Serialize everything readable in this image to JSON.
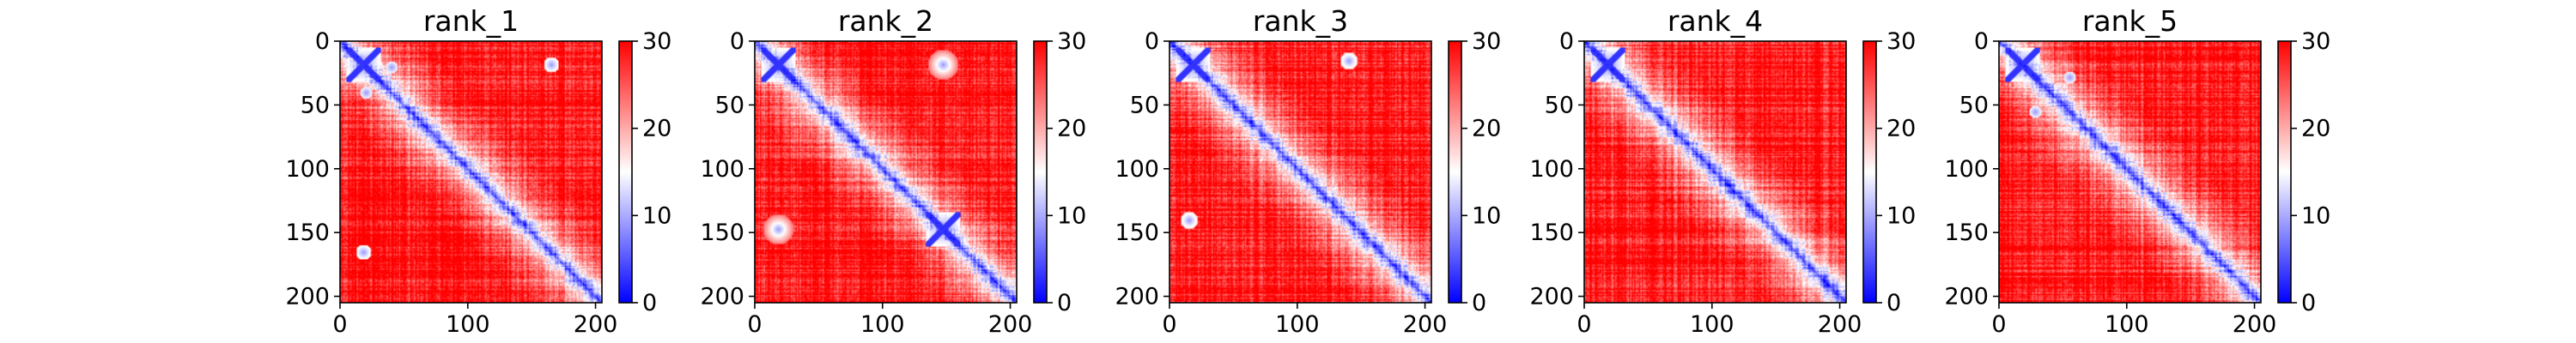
{
  "figure": {
    "colors": {
      "low": "#0000ff",
      "mid": "#ffffff",
      "high": "#ff0000"
    }
  },
  "chart_data": [
    {
      "type": "heatmap",
      "title": "rank_1",
      "xlabel": "",
      "ylabel": "",
      "matrix_size": 205,
      "xlim": [
        0,
        205
      ],
      "ylim": [
        205,
        0
      ],
      "x_ticks": [
        0,
        100,
        200
      ],
      "y_ticks": [
        0,
        50,
        100,
        150,
        200
      ],
      "colorbar": {
        "min": 0,
        "max": 30,
        "ticks": [
          0,
          10,
          20,
          30
        ],
        "colormap": "bwr"
      },
      "low_distance_features": [
        {
          "kind": "diagonal"
        },
        {
          "kind": "cross",
          "center": [
            18,
            18
          ],
          "size": 14
        },
        {
          "kind": "bump",
          "center": [
            75,
            75
          ],
          "size": 5
        },
        {
          "kind": "spot",
          "row": 18,
          "col": 165,
          "size": 6
        },
        {
          "kind": "spot",
          "row": 165,
          "col": 18,
          "size": 6
        },
        {
          "kind": "spot",
          "row": 20,
          "col": 40,
          "size": 5
        },
        {
          "kind": "spot",
          "row": 40,
          "col": 20,
          "size": 5
        }
      ]
    },
    {
      "type": "heatmap",
      "title": "rank_2",
      "xlabel": "",
      "ylabel": "",
      "matrix_size": 205,
      "xlim": [
        0,
        205
      ],
      "ylim": [
        205,
        0
      ],
      "x_ticks": [
        0,
        100,
        200
      ],
      "y_ticks": [
        0,
        50,
        100,
        150,
        200
      ],
      "colorbar": {
        "min": 0,
        "max": 30,
        "ticks": [
          0,
          10,
          20,
          30
        ],
        "colormap": "bwr"
      },
      "low_distance_features": [
        {
          "kind": "diagonal"
        },
        {
          "kind": "cross",
          "center": [
            18,
            18
          ],
          "size": 14
        },
        {
          "kind": "cross",
          "center": [
            147,
            147
          ],
          "size": 14
        },
        {
          "kind": "spot",
          "row": 18,
          "col": 147,
          "size": 12
        },
        {
          "kind": "spot",
          "row": 147,
          "col": 18,
          "size": 12
        },
        {
          "kind": "bump",
          "center": [
            75,
            75
          ],
          "size": 5
        }
      ]
    },
    {
      "type": "heatmap",
      "title": "rank_3",
      "xlabel": "",
      "ylabel": "",
      "matrix_size": 205,
      "xlim": [
        0,
        205
      ],
      "ylim": [
        205,
        0
      ],
      "x_ticks": [
        0,
        100,
        200
      ],
      "y_ticks": [
        0,
        50,
        100,
        150,
        200
      ],
      "colorbar": {
        "min": 0,
        "max": 30,
        "ticks": [
          0,
          10,
          20,
          30
        ],
        "colormap": "bwr"
      },
      "low_distance_features": [
        {
          "kind": "diagonal"
        },
        {
          "kind": "cross",
          "center": [
            18,
            18
          ],
          "size": 14
        },
        {
          "kind": "bump",
          "center": [
            75,
            75
          ],
          "size": 5
        },
        {
          "kind": "bump",
          "center": [
            130,
            130
          ],
          "size": 5
        },
        {
          "kind": "spot",
          "row": 15,
          "col": 140,
          "size": 7
        },
        {
          "kind": "spot",
          "row": 140,
          "col": 15,
          "size": 7
        }
      ]
    },
    {
      "type": "heatmap",
      "title": "rank_4",
      "xlabel": "",
      "ylabel": "",
      "matrix_size": 205,
      "xlim": [
        0,
        205
      ],
      "ylim": [
        205,
        0
      ],
      "x_ticks": [
        0,
        100,
        200
      ],
      "y_ticks": [
        0,
        50,
        100,
        150,
        200
      ],
      "colorbar": {
        "min": 0,
        "max": 30,
        "ticks": [
          0,
          10,
          20,
          30
        ],
        "colormap": "bwr"
      },
      "low_distance_features": [
        {
          "kind": "diagonal"
        },
        {
          "kind": "cross",
          "center": [
            18,
            18
          ],
          "size": 14
        },
        {
          "kind": "bump",
          "center": [
            45,
            45
          ],
          "size": 5
        },
        {
          "kind": "bump",
          "center": [
            75,
            75
          ],
          "size": 5
        },
        {
          "kind": "bump",
          "center": [
            100,
            100
          ],
          "size": 6
        },
        {
          "kind": "bump",
          "center": [
            130,
            130
          ],
          "size": 5
        }
      ]
    },
    {
      "type": "heatmap",
      "title": "rank_5",
      "xlabel": "",
      "ylabel": "",
      "matrix_size": 205,
      "xlim": [
        0,
        205
      ],
      "ylim": [
        205,
        0
      ],
      "x_ticks": [
        0,
        100,
        200
      ],
      "y_ticks": [
        0,
        50,
        100,
        150,
        200
      ],
      "colorbar": {
        "min": 0,
        "max": 30,
        "ticks": [
          0,
          10,
          20,
          30
        ],
        "colormap": "bwr"
      },
      "low_distance_features": [
        {
          "kind": "diagonal"
        },
        {
          "kind": "cross",
          "center": [
            18,
            18
          ],
          "size": 14
        },
        {
          "kind": "bump",
          "center": [
            75,
            75
          ],
          "size": 5
        },
        {
          "kind": "bump",
          "center": [
            130,
            130
          ],
          "size": 5
        },
        {
          "kind": "spot",
          "row": 28,
          "col": 55,
          "size": 5
        },
        {
          "kind": "spot",
          "row": 55,
          "col": 28,
          "size": 5
        }
      ]
    }
  ]
}
